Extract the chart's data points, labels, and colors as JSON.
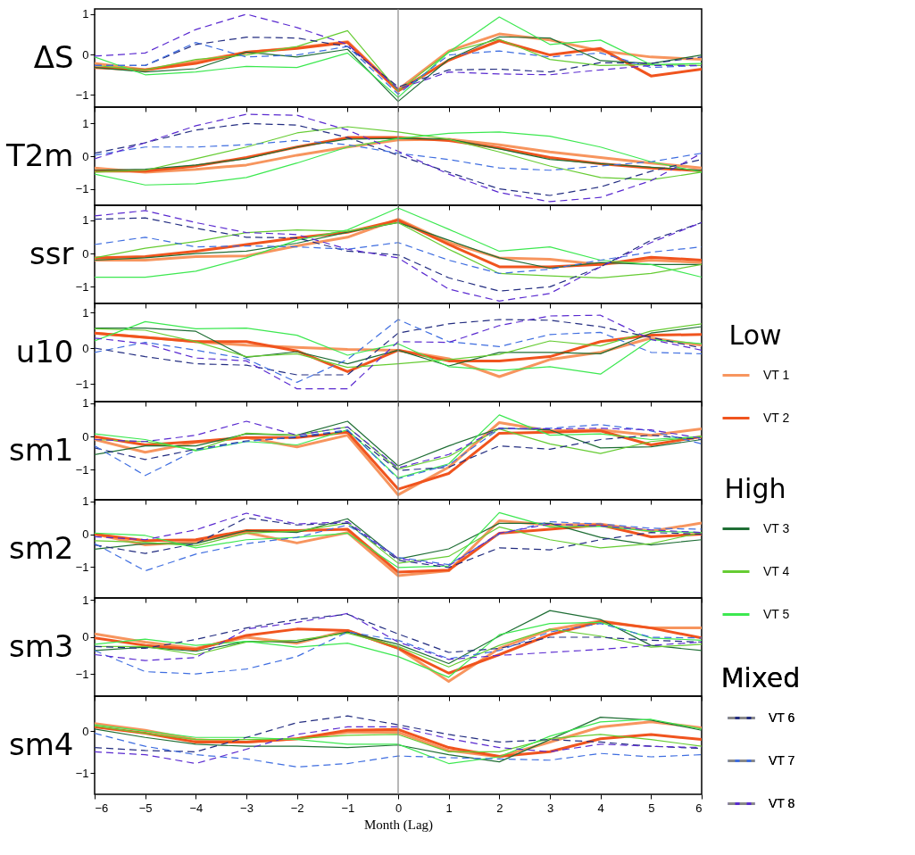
{
  "chart_data": [
    {
      "type": "line",
      "ylabel": "ΔS",
      "x": [
        -6,
        -5,
        -4,
        -3,
        -2,
        -1,
        0,
        1,
        2,
        3,
        4,
        5,
        6
      ],
      "xlim": [
        -6,
        6
      ],
      "xticks": [
        -6,
        -5,
        -4,
        -3,
        -2,
        -1,
        0,
        1,
        2,
        3,
        4,
        5,
        6
      ],
      "ylim": [
        -1.3,
        1.13
      ],
      "yticks": [
        -1,
        0,
        1
      ],
      "tick_labels": "y",
      "legend": "right",
      "annotations": [
        "Low",
        "High",
        "Mixed"
      ],
      "ref_lines": [
        {
          "axis": "x",
          "value": 0,
          "color": "#888888"
        }
      ],
      "series": [
        {
          "name": "VT 1",
          "color": "#f7955e",
          "values": [
            -0.22,
            -0.38,
            -0.17,
            0.06,
            0.17,
            0.32,
            -0.87,
            0.09,
            0.51,
            0.36,
            0.09,
            -0.06,
            -0.12
          ]
        },
        {
          "name": "VT 2",
          "color": "#f0541e",
          "values": [
            -0.32,
            -0.38,
            -0.22,
            0.06,
            0.15,
            0.3,
            -0.9,
            -0.14,
            0.34,
            -0.01,
            0.15,
            -0.53,
            -0.36
          ]
        },
        {
          "name": "VT 3",
          "color": "#1f6e35",
          "values": [
            -0.32,
            -0.43,
            -0.35,
            0.06,
            -0.06,
            0.13,
            -1.16,
            -0.12,
            0.44,
            0.41,
            -0.15,
            -0.22,
            -0.01
          ]
        },
        {
          "name": "VT 4",
          "color": "#66cc33",
          "values": [
            -0.27,
            -0.38,
            -0.12,
            -0.01,
            0.2,
            0.59,
            -0.9,
            0.06,
            0.38,
            -0.12,
            -0.27,
            -0.25,
            -0.27
          ]
        },
        {
          "name": "VT 5",
          "color": "#3ce850",
          "values": [
            -0.06,
            -0.5,
            -0.43,
            -0.29,
            -0.32,
            0.04,
            -1.06,
            0.06,
            0.93,
            0.25,
            0.36,
            -0.25,
            -0.22
          ]
        },
        {
          "name": "VT 6",
          "color": "#232d80",
          "line_style": "dashed",
          "values": [
            -0.27,
            -0.27,
            0.25,
            0.43,
            0.41,
            0.2,
            -0.8,
            -0.38,
            -0.36,
            -0.43,
            -0.2,
            -0.22,
            -0.06
          ]
        },
        {
          "name": "VT 7",
          "color": "#3f6ee0",
          "line_style": "dashed",
          "values": [
            -0.27,
            -0.27,
            0.3,
            -0.06,
            -0.01,
            0.2,
            -0.98,
            -0.01,
            0.09,
            -0.06,
            0.04,
            -0.32,
            -0.27
          ]
        },
        {
          "name": "VT 8",
          "color": "#5a2ad0",
          "line_style": "dashed",
          "values": [
            -0.04,
            0.04,
            0.62,
            1.0,
            0.67,
            0.25,
            -0.85,
            -0.43,
            -0.48,
            -0.5,
            -0.38,
            -0.27,
            -0.27
          ]
        }
      ]
    },
    {
      "type": "line",
      "ylabel": "T2m",
      "x": [
        -6,
        -5,
        -4,
        -3,
        -2,
        -1,
        0,
        1,
        2,
        3,
        4,
        5,
        6
      ],
      "xlim": [
        -6,
        6
      ],
      "xticks": [
        -6,
        -5,
        -4,
        -3,
        -2,
        -1,
        0,
        1,
        2,
        3,
        4,
        5,
        6
      ],
      "ylim": [
        -1.5,
        1.5
      ],
      "yticks": [
        -1,
        0,
        1
      ],
      "tick_labels": "y",
      "ref_lines": [
        {
          "axis": "x",
          "value": 0,
          "color": "#888888"
        }
      ],
      "series": [
        {
          "name": "VT 1",
          "color": "#f7955e",
          "values": [
            -0.36,
            -0.49,
            -0.4,
            -0.27,
            0.03,
            0.28,
            0.5,
            0.52,
            0.35,
            0.13,
            -0.04,
            -0.21,
            -0.36
          ]
        },
        {
          "name": "VT 2",
          "color": "#f0541e",
          "values": [
            -0.46,
            -0.46,
            -0.3,
            -0.04,
            0.28,
            0.57,
            0.57,
            0.48,
            0.25,
            -0.04,
            -0.23,
            -0.36,
            -0.45
          ]
        },
        {
          "name": "VT 3",
          "color": "#1f6e35",
          "values": [
            -0.43,
            -0.4,
            -0.27,
            -0.08,
            0.28,
            0.52,
            0.54,
            0.52,
            0.22,
            -0.1,
            -0.23,
            -0.34,
            -0.43
          ]
        },
        {
          "name": "VT 4",
          "color": "#66cc33",
          "values": [
            -0.49,
            -0.43,
            -0.08,
            0.28,
            0.71,
            0.9,
            0.74,
            0.52,
            0.13,
            -0.3,
            -0.65,
            -0.72,
            -0.49
          ]
        },
        {
          "name": "VT 5",
          "color": "#3ce850",
          "values": [
            -0.55,
            -0.88,
            -0.84,
            -0.65,
            -0.21,
            0.28,
            0.54,
            0.7,
            0.74,
            0.61,
            0.28,
            -0.17,
            -0.49
          ]
        },
        {
          "name": "VT 6",
          "color": "#232d80",
          "line_style": "dashed",
          "values": [
            0.09,
            0.41,
            0.8,
            1.0,
            0.95,
            0.57,
            0.03,
            -0.49,
            -1.0,
            -1.2,
            -0.94,
            -0.46,
            -0.1
          ]
        },
        {
          "name": "VT 7",
          "color": "#3f6ee0",
          "line_style": "dashed",
          "values": [
            0.03,
            0.28,
            0.28,
            0.35,
            0.48,
            0.35,
            0.09,
            -0.1,
            -0.36,
            -0.43,
            -0.3,
            -0.17,
            0.09
          ]
        },
        {
          "name": "VT 8",
          "color": "#5a2ad0",
          "line_style": "dashed",
          "values": [
            -0.08,
            0.41,
            0.93,
            1.28,
            1.25,
            0.8,
            0.15,
            -0.55,
            -1.11,
            -1.39,
            -1.26,
            -0.75,
            0.09
          ]
        }
      ]
    },
    {
      "type": "line",
      "ylabel": "ssr",
      "x": [
        -6,
        -5,
        -4,
        -3,
        -2,
        -1,
        0,
        1,
        2,
        3,
        4,
        5,
        6
      ],
      "xlim": [
        -6,
        6
      ],
      "xticks": [
        -6,
        -5,
        -4,
        -3,
        -2,
        -1,
        0,
        1,
        2,
        3,
        4,
        5,
        6
      ],
      "ylim": [
        -1.5,
        1.45
      ],
      "yticks": [
        -1,
        0,
        1
      ],
      "tick_labels": "y",
      "ref_lines": [
        {
          "axis": "x",
          "value": 0,
          "color": "#888888"
        }
      ],
      "series": [
        {
          "name": "VT 1",
          "color": "#f7955e",
          "values": [
            -0.2,
            -0.2,
            -0.09,
            -0.07,
            0.23,
            0.49,
            1.03,
            0.33,
            -0.13,
            -0.17,
            -0.33,
            -0.2,
            -0.27
          ]
        },
        {
          "name": "VT 2",
          "color": "#f0541e",
          "values": [
            -0.13,
            -0.09,
            0.07,
            0.27,
            0.47,
            0.64,
            1.0,
            0.27,
            -0.4,
            -0.4,
            -0.33,
            -0.11,
            -0.2
          ]
        },
        {
          "name": "VT 3",
          "color": "#1f6e35",
          "values": [
            -0.2,
            -0.13,
            0.0,
            0.07,
            0.31,
            0.64,
            0.93,
            0.4,
            -0.13,
            -0.44,
            -0.27,
            -0.33,
            -0.33
          ]
        },
        {
          "name": "VT 4",
          "color": "#66cc33",
          "values": [
            -0.13,
            0.16,
            0.36,
            0.63,
            0.71,
            0.67,
            0.93,
            0.13,
            -0.6,
            -0.67,
            -0.73,
            -0.6,
            -0.33
          ]
        },
        {
          "name": "VT 5",
          "color": "#3ce850",
          "values": [
            -0.71,
            -0.71,
            -0.53,
            -0.13,
            0.4,
            0.71,
            1.37,
            0.73,
            0.07,
            0.2,
            -0.2,
            -0.33,
            -0.71
          ]
        },
        {
          "name": "VT 6",
          "color": "#232d80",
          "line_style": "dashed",
          "values": [
            1.03,
            1.07,
            0.76,
            0.49,
            0.47,
            0.07,
            -0.04,
            -0.73,
            -1.13,
            -1.0,
            -0.4,
            0.4,
            0.93
          ]
        },
        {
          "name": "VT 7",
          "color": "#3f6ee0",
          "line_style": "dashed",
          "values": [
            0.27,
            0.49,
            0.2,
            0.23,
            0.2,
            0.13,
            0.33,
            -0.2,
            -0.6,
            -0.47,
            -0.2,
            0.04,
            0.2
          ]
        },
        {
          "name": "VT 8",
          "color": "#5a2ad0",
          "line_style": "dashed",
          "values": [
            1.13,
            1.29,
            0.93,
            0.63,
            0.57,
            0.13,
            -0.13,
            -1.07,
            -1.43,
            -1.2,
            -0.4,
            0.33,
            0.93
          ]
        }
      ]
    },
    {
      "type": "line",
      "ylabel": "u10",
      "x": [
        -6,
        -5,
        -4,
        -3,
        -2,
        -1,
        0,
        1,
        2,
        3,
        4,
        5,
        6
      ],
      "xlim": [
        -6,
        6
      ],
      "xticks": [
        -6,
        -5,
        -4,
        -3,
        -2,
        -1,
        0,
        1,
        2,
        3,
        4,
        5,
        6
      ],
      "ylim": [
        -1.5,
        1.25
      ],
      "yticks": [
        -1,
        0,
        1
      ],
      "tick_labels": "y",
      "ref_lines": [
        {
          "axis": "x",
          "value": 0,
          "color": "#888888"
        }
      ],
      "series": [
        {
          "name": "VT 1",
          "color": "#f7955e",
          "values": [
            0.42,
            0.3,
            0.18,
            0.08,
            0.02,
            -0.04,
            -0.06,
            -0.3,
            -0.8,
            -0.32,
            -0.12,
            0.28,
            0.08
          ]
        },
        {
          "name": "VT 2",
          "color": "#f0541e",
          "values": [
            0.42,
            0.3,
            0.18,
            0.18,
            -0.08,
            -0.66,
            -0.06,
            -0.36,
            -0.36,
            -0.24,
            0.18,
            0.36,
            0.38
          ]
        },
        {
          "name": "VT 3",
          "color": "#1f6e35",
          "values": [
            0.56,
            0.56,
            0.47,
            -0.26,
            -0.1,
            -0.44,
            -0.06,
            -0.5,
            -0.12,
            -0.12,
            -0.16,
            0.42,
            0.6
          ]
        },
        {
          "name": "VT 4",
          "color": "#66cc33",
          "values": [
            0.54,
            0.5,
            0.18,
            -0.24,
            -0.16,
            -0.54,
            -0.44,
            -0.32,
            -0.18,
            0.2,
            0.06,
            0.48,
            0.68
          ]
        },
        {
          "name": "VT 5",
          "color": "#3ce850",
          "values": [
            0.2,
            0.74,
            0.54,
            0.56,
            0.36,
            -0.2,
            0.12,
            -0.52,
            -0.63,
            -0.52,
            -0.73,
            0.24,
            0.12
          ]
        },
        {
          "name": "VT 6",
          "color": "#232d80",
          "line_style": "dashed",
          "values": [
            0.0,
            -0.24,
            -0.44,
            -0.48,
            -0.75,
            -0.75,
            0.42,
            0.68,
            0.8,
            0.78,
            0.6,
            0.3,
            0.0
          ]
        },
        {
          "name": "VT 7",
          "color": "#3f6ee0",
          "line_style": "dashed",
          "values": [
            -0.12,
            0.16,
            -0.06,
            -0.3,
            -0.96,
            -0.32,
            0.8,
            0.18,
            0.04,
            0.38,
            0.44,
            -0.12,
            -0.16
          ]
        },
        {
          "name": "VT 8",
          "color": "#5a2ad0",
          "line_style": "dashed",
          "values": [
            0.28,
            0.12,
            -0.28,
            -0.36,
            -1.14,
            -1.14,
            0.18,
            0.16,
            0.63,
            0.9,
            0.92,
            0.24,
            -0.06
          ]
        }
      ]
    },
    {
      "type": "line",
      "ylabel": "sm1",
      "x": [
        -6,
        -5,
        -4,
        -3,
        -2,
        -1,
        0,
        1,
        2,
        3,
        4,
        5,
        6
      ],
      "xlim": [
        -6,
        6
      ],
      "xticks": [
        -6,
        -5,
        -4,
        -3,
        -2,
        -1,
        0,
        1,
        2,
        3,
        4,
        5,
        6
      ],
      "ylim": [
        -1.9,
        1.05
      ],
      "yticks": [
        -1,
        0,
        1
      ],
      "tick_labels": "y",
      "ref_lines": [
        {
          "axis": "x",
          "value": 0,
          "color": "#888888"
        }
      ],
      "series": [
        {
          "name": "VT 1",
          "color": "#f7955e",
          "values": [
            -0.09,
            -0.47,
            -0.18,
            -0.03,
            -0.31,
            0.04,
            -1.75,
            -0.92,
            0.42,
            0.17,
            0.2,
            0.04,
            0.23
          ]
        },
        {
          "name": "VT 2",
          "color": "#f0541e",
          "values": [
            0.0,
            -0.25,
            -0.15,
            -0.03,
            -0.03,
            0.13,
            -1.58,
            -1.11,
            0.1,
            0.13,
            0.17,
            -0.25,
            0.0
          ]
        },
        {
          "name": "VT 3",
          "color": "#1f6e35",
          "values": [
            -0.54,
            -0.28,
            -0.28,
            0.08,
            0.04,
            0.46,
            -0.88,
            -0.28,
            0.25,
            0.2,
            -0.34,
            -0.31,
            -0.09
          ]
        },
        {
          "name": "VT 4",
          "color": "#66cc33",
          "values": [
            -0.09,
            -0.15,
            -0.41,
            0.1,
            0.04,
            0.29,
            -0.98,
            -0.6,
            0.23,
            -0.22,
            -0.51,
            -0.15,
            0.0
          ]
        },
        {
          "name": "VT 5",
          "color": "#3ce850",
          "values": [
            0.08,
            -0.09,
            -0.43,
            -0.15,
            -0.25,
            0.2,
            -1.24,
            -0.82,
            0.65,
            0.04,
            0.08,
            -0.09,
            0.0
          ]
        },
        {
          "name": "VT 6",
          "color": "#232d80",
          "line_style": "dashed",
          "values": [
            -0.34,
            -0.69,
            -0.38,
            -0.13,
            -0.03,
            0.17,
            -1.02,
            -0.92,
            -0.28,
            -0.38,
            -0.09,
            0.04,
            -0.09
          ]
        },
        {
          "name": "VT 7",
          "color": "#3f6ee0",
          "line_style": "dashed",
          "values": [
            -0.28,
            -1.17,
            -0.41,
            -0.15,
            0.0,
            0.2,
            -1.27,
            -0.85,
            0.23,
            0.25,
            0.36,
            0.17,
            -0.22
          ]
        },
        {
          "name": "VT 8",
          "color": "#5a2ad0",
          "line_style": "dashed",
          "values": [
            -0.09,
            -0.15,
            0.04,
            0.46,
            0.04,
            0.29,
            -0.94,
            -0.54,
            0.25,
            0.23,
            0.25,
            0.2,
            -0.05
          ]
        }
      ]
    },
    {
      "type": "line",
      "ylabel": "sm2",
      "x": [
        -6,
        -5,
        -4,
        -3,
        -2,
        -1,
        0,
        1,
        2,
        3,
        4,
        5,
        6
      ],
      "xlim": [
        -6,
        6
      ],
      "xticks": [
        -6,
        -5,
        -4,
        -3,
        -2,
        -1,
        0,
        1,
        2,
        3,
        4,
        5,
        6
      ],
      "ylim": [
        -1.95,
        1.05
      ],
      "yticks": [
        -1,
        0,
        1
      ],
      "tick_labels": "y",
      "ref_lines": [
        {
          "axis": "x",
          "value": 0,
          "color": "#888888"
        }
      ],
      "series": [
        {
          "name": "VT 1",
          "color": "#f7955e",
          "values": [
            0.0,
            -0.33,
            -0.23,
            0.05,
            -0.27,
            0.05,
            -1.27,
            -1.12,
            0.41,
            0.28,
            0.31,
            0.09,
            0.34
          ]
        },
        {
          "name": "VT 2",
          "color": "#f0541e",
          "values": [
            0.0,
            -0.2,
            -0.17,
            0.11,
            0.11,
            0.15,
            -1.16,
            -1.1,
            0.03,
            0.15,
            0.28,
            -0.08,
            0.0
          ]
        },
        {
          "name": "VT 3",
          "color": "#1f6e35",
          "values": [
            -0.46,
            -0.29,
            -0.29,
            0.11,
            0.05,
            0.47,
            -0.76,
            -0.45,
            0.33,
            0.33,
            -0.1,
            -0.33,
            -0.17
          ]
        },
        {
          "name": "VT 4",
          "color": "#66cc33",
          "values": [
            -0.2,
            -0.25,
            -0.36,
            0.03,
            0.09,
            0.34,
            -0.89,
            -0.68,
            0.22,
            -0.17,
            -0.42,
            -0.29,
            0.05
          ]
        },
        {
          "name": "VT 5",
          "color": "#3ce850",
          "values": [
            0.03,
            -0.04,
            -0.42,
            -0.17,
            -0.1,
            0.03,
            -1.02,
            -0.97,
            0.66,
            0.22,
            0.24,
            0.09,
            0.05
          ]
        },
        {
          "name": "VT 6",
          "color": "#232d80",
          "line_style": "dashed",
          "values": [
            -0.33,
            -0.59,
            -0.29,
            0.5,
            0.28,
            0.34,
            -0.8,
            -1.02,
            -0.42,
            -0.48,
            -0.17,
            0.05,
            0.0
          ]
        },
        {
          "name": "VT 7",
          "color": "#3f6ee0",
          "line_style": "dashed",
          "values": [
            -0.29,
            -1.12,
            -0.61,
            -0.29,
            -0.1,
            0.28,
            -0.71,
            -0.93,
            0.0,
            0.38,
            0.31,
            0.18,
            0.15
          ]
        },
        {
          "name": "VT 8",
          "color": "#5a2ad0",
          "line_style": "dashed",
          "values": [
            -0.08,
            -0.17,
            0.13,
            0.64,
            0.31,
            0.38,
            -0.74,
            -0.97,
            0.03,
            0.31,
            0.25,
            0.13,
            0.05
          ]
        }
      ]
    },
    {
      "type": "line",
      "ylabel": "sm3",
      "x": [
        -6,
        -5,
        -4,
        -3,
        -2,
        -1,
        0,
        1,
        2,
        3,
        4,
        5,
        6
      ],
      "xlim": [
        -6,
        6
      ],
      "xticks": [
        -6,
        -5,
        -4,
        -3,
        -2,
        -1,
        0,
        1,
        2,
        3,
        4,
        5,
        6
      ],
      "ylim": [
        -1.6,
        1.05
      ],
      "yticks": [
        -1,
        0,
        1
      ],
      "tick_labels": "y",
      "ref_lines": [
        {
          "axis": "x",
          "value": 0,
          "color": "#888888"
        }
      ],
      "series": [
        {
          "name": "VT 1",
          "color": "#f7955e",
          "values": [
            0.08,
            -0.14,
            -0.31,
            -0.01,
            -0.17,
            0.17,
            -0.31,
            -1.2,
            -0.31,
            0.19,
            0.43,
            0.24,
            0.24
          ]
        },
        {
          "name": "VT 2",
          "color": "#f0541e",
          "values": [
            -0.03,
            -0.23,
            -0.34,
            0.04,
            0.21,
            0.17,
            -0.31,
            -0.98,
            -0.48,
            0.06,
            0.41,
            0.24,
            -0.03
          ]
        },
        {
          "name": "VT 3",
          "color": "#1f6e35",
          "values": [
            -0.37,
            -0.28,
            -0.39,
            -0.12,
            -0.14,
            0.13,
            -0.2,
            -0.72,
            0.02,
            0.71,
            0.47,
            -0.23,
            -0.37
          ]
        },
        {
          "name": "VT 4",
          "color": "#66cc33",
          "values": [
            -0.26,
            -0.26,
            -0.48,
            -0.14,
            -0.09,
            0.1,
            -0.26,
            -0.81,
            -0.23,
            0.21,
            0.02,
            -0.28,
            -0.2
          ]
        },
        {
          "name": "VT 5",
          "color": "#3ce850",
          "values": [
            -0.2,
            -0.06,
            -0.23,
            -0.12,
            -0.28,
            -0.17,
            -0.53,
            -1.09,
            0.06,
            0.36,
            0.39,
            -0.03,
            -0.09
          ]
        },
        {
          "name": "VT 6",
          "color": "#232d80",
          "line_style": "dashed",
          "values": [
            -0.26,
            -0.31,
            -0.07,
            0.24,
            0.47,
            0.61,
            0.08,
            -0.42,
            -0.31,
            -0.01,
            -0.01,
            -0.09,
            -0.14
          ]
        },
        {
          "name": "VT 7",
          "color": "#3f6ee0",
          "line_style": "dashed",
          "values": [
            -0.37,
            -0.94,
            -1.0,
            -0.87,
            -0.53,
            0.13,
            -0.09,
            -0.59,
            -0.37,
            0.13,
            0.36,
            -0.01,
            -0.03
          ]
        },
        {
          "name": "VT 8",
          "color": "#5a2ad0",
          "line_style": "dashed",
          "values": [
            -0.48,
            -0.64,
            -0.56,
            0.21,
            0.39,
            0.63,
            -0.14,
            -0.61,
            -0.5,
            -0.42,
            -0.34,
            -0.23,
            -0.14
          ]
        }
      ]
    },
    {
      "type": "line",
      "ylabel": "sm4",
      "xlabel": "Month (Lag)",
      "x": [
        -6,
        -5,
        -4,
        -3,
        -2,
        -1,
        0,
        1,
        2,
        3,
        4,
        5,
        6
      ],
      "xlim": [
        -6,
        6
      ],
      "xticks": [
        -6,
        -5,
        -4,
        -3,
        -2,
        -1,
        0,
        1,
        2,
        3,
        4,
        5,
        6
      ],
      "ylim": [
        -1.5,
        0.83
      ],
      "yticks": [
        -1,
        0
      ],
      "ref_lines": [
        {
          "axis": "x",
          "value": 0,
          "color": "#888888"
        }
      ],
      "series": [
        {
          "name": "VT 1",
          "color": "#f7955e",
          "values": [
            0.18,
            0.02,
            -0.2,
            -0.26,
            -0.18,
            -0.03,
            -0.03,
            -0.46,
            -0.61,
            -0.26,
            0.1,
            0.22,
            0.08
          ]
        },
        {
          "name": "VT 2",
          "color": "#f0541e",
          "values": [
            0.1,
            -0.05,
            -0.26,
            -0.26,
            -0.18,
            0.02,
            0.04,
            -0.39,
            -0.6,
            -0.49,
            -0.18,
            -0.08,
            -0.2
          ]
        },
        {
          "name": "VT 3",
          "color": "#1f6e35",
          "values": [
            0.05,
            -0.15,
            -0.31,
            -0.36,
            -0.36,
            -0.39,
            -0.33,
            -0.56,
            -0.73,
            -0.2,
            0.33,
            0.26,
            0.02
          ]
        },
        {
          "name": "VT 4",
          "color": "#66cc33",
          "values": [
            0.12,
            -0.05,
            -0.2,
            -0.2,
            -0.18,
            -0.1,
            -0.08,
            -0.49,
            -0.49,
            -0.18,
            -0.08,
            -0.2,
            -0.36
          ]
        },
        {
          "name": "VT 5",
          "color": "#3ce850",
          "values": [
            0.15,
            0.0,
            -0.15,
            -0.15,
            -0.2,
            -0.31,
            -0.31,
            -0.77,
            -0.61,
            -0.12,
            0.22,
            0.28,
            0.05
          ]
        },
        {
          "name": "VT 6",
          "color": "#232d80",
          "line_style": "dashed",
          "values": [
            -0.39,
            -0.46,
            -0.49,
            -0.15,
            0.2,
            0.36,
            0.15,
            -0.08,
            -0.26,
            -0.2,
            -0.26,
            -0.36,
            -0.41
          ]
        },
        {
          "name": "VT 7",
          "color": "#3f6ee0",
          "line_style": "dashed",
          "values": [
            -0.05,
            -0.36,
            -0.56,
            -0.66,
            -0.85,
            -0.77,
            -0.59,
            -0.63,
            -0.66,
            -0.69,
            -0.53,
            -0.61,
            -0.56
          ]
        },
        {
          "name": "VT 8",
          "color": "#5a2ad0",
          "line_style": "dashed",
          "values": [
            -0.49,
            -0.56,
            -0.77,
            -0.43,
            -0.08,
            0.1,
            0.1,
            -0.18,
            -0.39,
            -0.49,
            -0.31,
            -0.36,
            -0.39
          ]
        }
      ]
    }
  ]
}
